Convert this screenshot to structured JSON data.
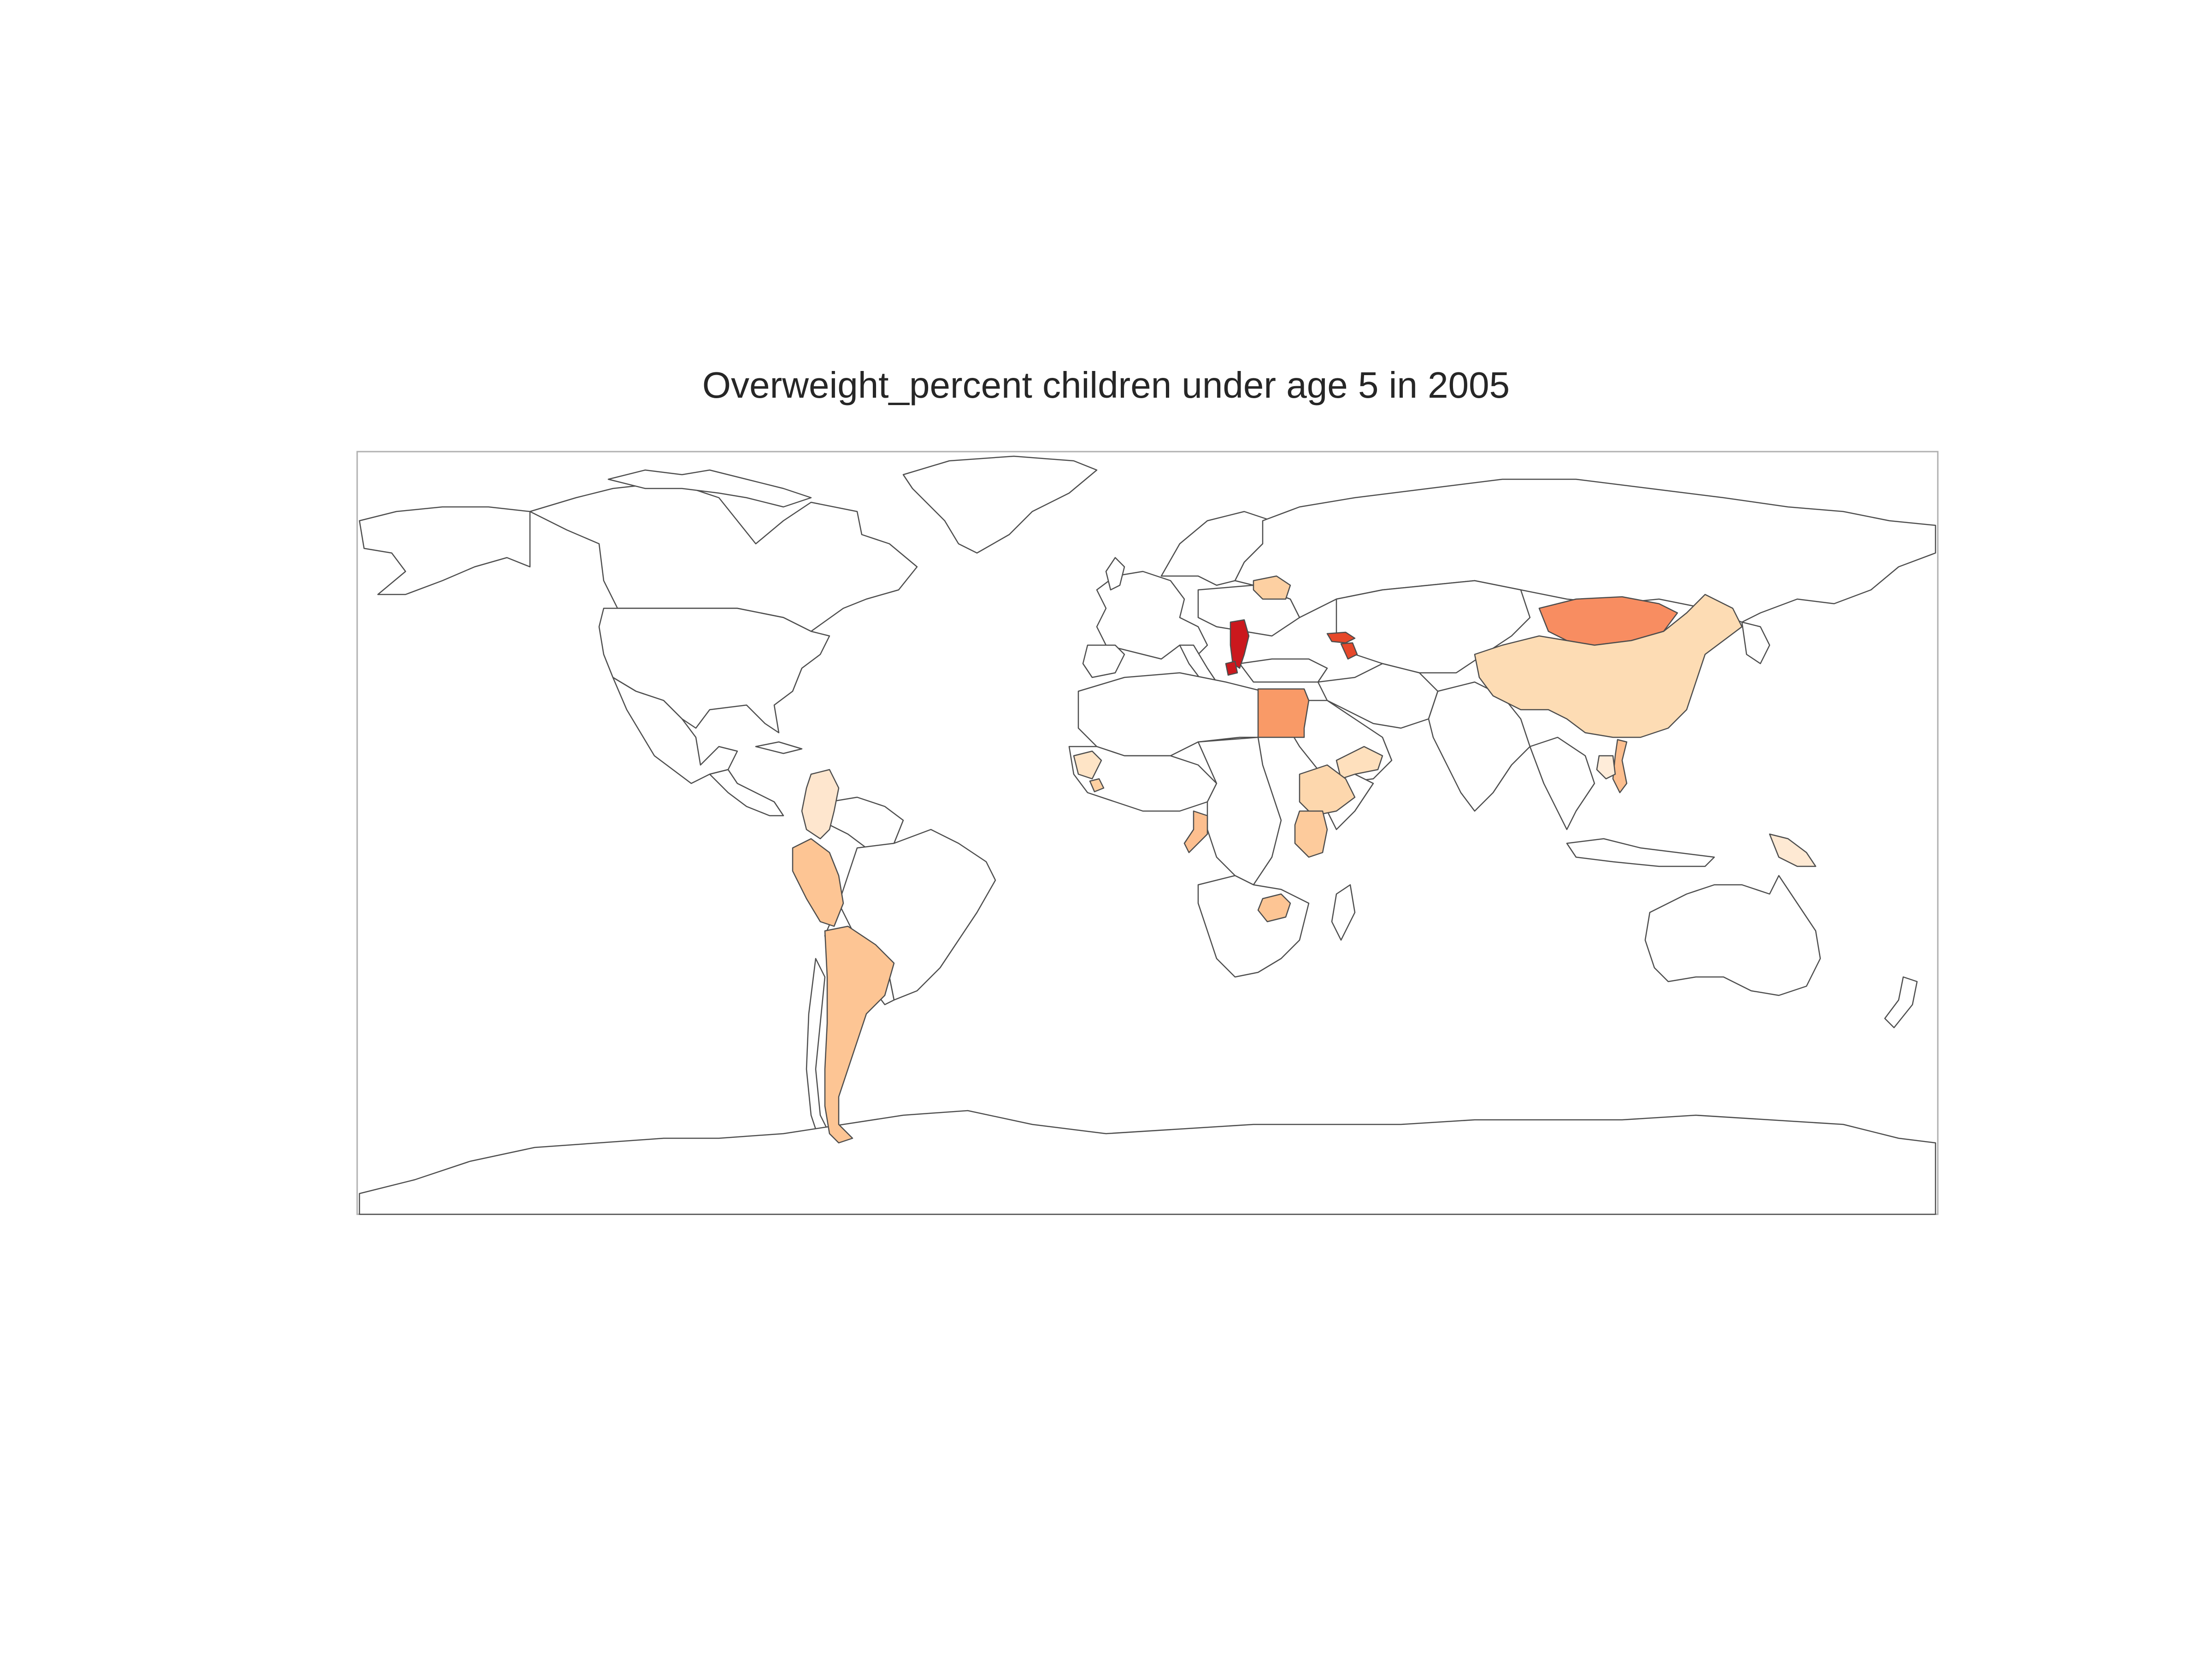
{
  "title": "Overweight_percent children under age 5 in 2005",
  "colors": {
    "background": "#ffffff",
    "border": "#4d4d4d",
    "frame": "#b0b0b0",
    "no_data": "#ffffff",
    "scale": [
      "#fff5eb",
      "#fee6ce",
      "#fdd0a2",
      "#fdae6b",
      "#fd8d3c",
      "#f16913",
      "#d94801",
      "#a63603"
    ]
  },
  "shaded_countries": [
    {
      "name": "Belarus",
      "color": "#fdd0a2"
    },
    {
      "name": "Serbia",
      "color": "#cb181d"
    },
    {
      "name": "Montenegro",
      "color": "#cb181d"
    },
    {
      "name": "Georgia",
      "color": "#e6482a"
    },
    {
      "name": "Armenia",
      "color": "#e6482a"
    },
    {
      "name": "Mongolia",
      "color": "#f88d61"
    },
    {
      "name": "China",
      "color": "#fddcb4"
    },
    {
      "name": "Egypt",
      "color": "#f99a67"
    },
    {
      "name": "Yemen",
      "color": "#fee0bd"
    },
    {
      "name": "Ethiopia",
      "color": "#fdd7ad"
    },
    {
      "name": "Kenya",
      "color": "#fdcb9c"
    },
    {
      "name": "Congo",
      "color": "#fdbf8f"
    },
    {
      "name": "Zimbabwe",
      "color": "#fdc594"
    },
    {
      "name": "Guinea",
      "color": "#fee4c6"
    },
    {
      "name": "Liberia",
      "color": "#fdd0a2"
    },
    {
      "name": "Colombia",
      "color": "#fee6ce"
    },
    {
      "name": "Peru",
      "color": "#fdc594"
    },
    {
      "name": "Argentina",
      "color": "#fdc594"
    },
    {
      "name": "Vietnam",
      "color": "#fdbf8f"
    },
    {
      "name": "Laos",
      "color": "#feecd9"
    },
    {
      "name": "Papua New Guinea",
      "color": "#fee9d3"
    }
  ]
}
